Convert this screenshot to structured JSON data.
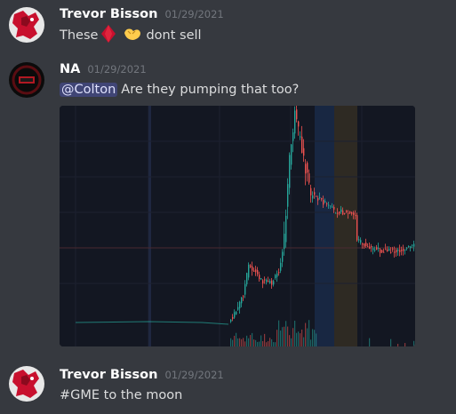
{
  "messages": [
    {
      "author": "Trevor Bisson",
      "timestamp": "01/29/2021",
      "text_before": "These",
      "text_after": "dont sell",
      "emojis": [
        "diamond-icon",
        "hands-icon"
      ]
    },
    {
      "author": "NA",
      "timestamp": "01/29/2021",
      "mention": "@Colton",
      "text": "Are they pumping that too?",
      "attachment": "stock-chart-image"
    },
    {
      "author": "Trevor Bisson",
      "timestamp": "01/29/2021",
      "text": "#GME to the moon"
    }
  ],
  "colors": {
    "background": "#36393f",
    "username": "#ffffff",
    "timestamp": "#72767d",
    "text": "#dcddde",
    "mention_bg": "#3c4270",
    "chart_bg": "#131722",
    "candle_up": "#26a69a",
    "candle_down": "#ef5350"
  }
}
